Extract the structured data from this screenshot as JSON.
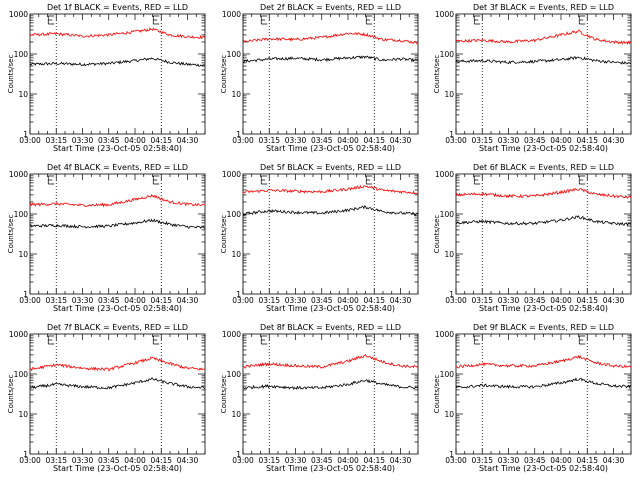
{
  "chart_data": [
    {
      "type": "line",
      "title": "Det 1f BLACK = Events, RED = LLD",
      "xlabel": "Start Time (23-Oct-05 02:58:40)",
      "ylabel": "Counts/sec",
      "yscale": "log",
      "ylim": [
        1,
        1000
      ],
      "xlim": [
        "03:00",
        "04:40"
      ],
      "x_tick_labels": [
        "03:00",
        "03:15",
        "03:30",
        "03:45",
        "04:00",
        "04:15",
        "04:30"
      ],
      "y_tick_labels": [
        "1",
        "10",
        "100",
        "1000"
      ],
      "dotted_vlines": [
        "03:15",
        "04:15"
      ],
      "grid": false,
      "legend": "none",
      "colors": {
        "events": "#000000",
        "lld": "#ff0000"
      },
      "series": [
        {
          "key": "events",
          "x": [
            "03:00",
            "03:15",
            "03:30",
            "03:45",
            "04:00",
            "04:10",
            "04:20",
            "04:30",
            "04:40"
          ],
          "values": [
            55,
            58,
            55,
            58,
            68,
            78,
            62,
            55,
            52
          ]
        },
        {
          "key": "lld",
          "x": [
            "03:00",
            "03:15",
            "03:30",
            "03:45",
            "04:00",
            "04:10",
            "04:20",
            "04:30",
            "04:40"
          ],
          "values": [
            300,
            320,
            280,
            300,
            360,
            420,
            300,
            270,
            260
          ]
        }
      ]
    },
    {
      "type": "line",
      "title": "Det 2f BLACK = Events, RED = LLD",
      "xlabel": "Start Time (23-Oct-05 02:58:40)",
      "ylabel": "Counts/sec",
      "yscale": "log",
      "ylim": [
        1,
        1000
      ],
      "xlim": [
        "03:00",
        "04:40"
      ],
      "x_tick_labels": [
        "03:00",
        "03:15",
        "03:30",
        "03:45",
        "04:00",
        "04:15",
        "04:30"
      ],
      "y_tick_labels": [
        "1",
        "10",
        "100",
        "1000"
      ],
      "dotted_vlines": [
        "03:15",
        "04:15"
      ],
      "grid": false,
      "legend": "none",
      "colors": {
        "events": "#000000",
        "lld": "#ff0000"
      },
      "series": [
        {
          "key": "events",
          "x": [
            "03:00",
            "03:15",
            "03:30",
            "03:45",
            "04:00",
            "04:10",
            "04:20",
            "04:30",
            "04:40"
          ],
          "values": [
            65,
            75,
            78,
            72,
            80,
            85,
            70,
            75,
            68
          ]
        },
        {
          "key": "lld",
          "x": [
            "03:00",
            "03:15",
            "03:30",
            "03:45",
            "04:00",
            "04:10",
            "04:20",
            "04:30",
            "04:40"
          ],
          "values": [
            200,
            240,
            230,
            260,
            330,
            310,
            230,
            220,
            190
          ]
        }
      ]
    },
    {
      "type": "line",
      "title": "Det 3f BLACK = Events, RED = LLD",
      "xlabel": "Start Time (23-Oct-05 02:58:40)",
      "ylabel": "Counts/sec",
      "yscale": "log",
      "ylim": [
        1,
        1000
      ],
      "xlim": [
        "03:00",
        "04:40"
      ],
      "x_tick_labels": [
        "03:00",
        "03:15",
        "03:30",
        "03:45",
        "04:00",
        "04:15",
        "04:30"
      ],
      "y_tick_labels": [
        "1",
        "10",
        "100",
        "1000"
      ],
      "dotted_vlines": [
        "03:15",
        "04:15"
      ],
      "grid": false,
      "legend": "none",
      "colors": {
        "events": "#000000",
        "lld": "#ff0000"
      },
      "series": [
        {
          "key": "events",
          "x": [
            "03:00",
            "03:15",
            "03:30",
            "03:45",
            "04:00",
            "04:10",
            "04:20",
            "04:30",
            "04:40"
          ],
          "values": [
            65,
            68,
            62,
            65,
            72,
            82,
            68,
            62,
            58
          ]
        },
        {
          "key": "lld",
          "x": [
            "03:00",
            "03:15",
            "03:30",
            "03:45",
            "04:00",
            "04:10",
            "04:20",
            "04:30",
            "04:40"
          ],
          "values": [
            210,
            220,
            200,
            220,
            300,
            370,
            230,
            200,
            190
          ]
        }
      ]
    },
    {
      "type": "line",
      "title": "Det 4f BLACK = Events, RED = LLD",
      "xlabel": "Start Time (23-Oct-05 02:58:40)",
      "ylabel": "Counts/sec",
      "yscale": "log",
      "ylim": [
        1,
        1000
      ],
      "xlim": [
        "03:00",
        "04:40"
      ],
      "x_tick_labels": [
        "03:00",
        "03:15",
        "03:30",
        "03:45",
        "04:00",
        "04:15",
        "04:30"
      ],
      "y_tick_labels": [
        "1",
        "10",
        "100",
        "1000"
      ],
      "dotted_vlines": [
        "03:15",
        "04:15"
      ],
      "grid": false,
      "legend": "none",
      "colors": {
        "events": "#000000",
        "lld": "#ff0000"
      },
      "series": [
        {
          "key": "events",
          "x": [
            "03:00",
            "03:15",
            "03:30",
            "03:45",
            "04:00",
            "04:10",
            "04:20",
            "04:30",
            "04:40"
          ],
          "values": [
            50,
            52,
            48,
            50,
            60,
            70,
            55,
            48,
            45
          ]
        },
        {
          "key": "lld",
          "x": [
            "03:00",
            "03:15",
            "03:30",
            "03:45",
            "04:00",
            "04:10",
            "04:20",
            "04:30",
            "04:40"
          ],
          "values": [
            170,
            180,
            165,
            170,
            230,
            290,
            200,
            175,
            165
          ]
        }
      ]
    },
    {
      "type": "line",
      "title": "Det 5f BLACK = Events, RED = LLD",
      "xlabel": "Start Time (23-Oct-05 02:58:40)",
      "ylabel": "Counts/sec",
      "yscale": "log",
      "ylim": [
        1,
        1000
      ],
      "xlim": [
        "03:00",
        "04:40"
      ],
      "x_tick_labels": [
        "03:00",
        "03:15",
        "03:30",
        "03:45",
        "04:00",
        "04:15",
        "04:30"
      ],
      "y_tick_labels": [
        "1",
        "10",
        "100",
        "1000"
      ],
      "dotted_vlines": [
        "03:15",
        "04:15"
      ],
      "grid": false,
      "legend": "none",
      "colors": {
        "events": "#000000",
        "lld": "#ff0000"
      },
      "series": [
        {
          "key": "events",
          "x": [
            "03:00",
            "03:15",
            "03:30",
            "03:45",
            "04:00",
            "04:10",
            "04:20",
            "04:30",
            "04:40"
          ],
          "values": [
            100,
            120,
            110,
            105,
            125,
            150,
            115,
            105,
            100
          ]
        },
        {
          "key": "lld",
          "x": [
            "03:00",
            "03:15",
            "03:30",
            "03:45",
            "04:00",
            "04:10",
            "04:20",
            "04:30",
            "04:40"
          ],
          "values": [
            350,
            390,
            370,
            360,
            420,
            500,
            390,
            360,
            340
          ]
        }
      ]
    },
    {
      "type": "line",
      "title": "Det 6f BLACK = Events, RED = LLD",
      "xlabel": "Start Time (23-Oct-05 02:58:40)",
      "ylabel": "Counts/sec",
      "yscale": "log",
      "ylim": [
        1,
        1000
      ],
      "xlim": [
        "03:00",
        "04:40"
      ],
      "x_tick_labels": [
        "03:00",
        "03:15",
        "03:30",
        "03:45",
        "04:00",
        "04:15",
        "04:30"
      ],
      "y_tick_labels": [
        "1",
        "10",
        "100",
        "1000"
      ],
      "dotted_vlines": [
        "03:15",
        "04:15"
      ],
      "grid": false,
      "legend": "none",
      "colors": {
        "events": "#000000",
        "lld": "#ff0000"
      },
      "series": [
        {
          "key": "events",
          "x": [
            "03:00",
            "03:15",
            "03:30",
            "03:45",
            "04:00",
            "04:10",
            "04:20",
            "04:30",
            "04:40"
          ],
          "values": [
            60,
            65,
            58,
            58,
            70,
            85,
            65,
            58,
            55
          ]
        },
        {
          "key": "lld",
          "x": [
            "03:00",
            "03:15",
            "03:30",
            "03:45",
            "04:00",
            "04:10",
            "04:20",
            "04:30",
            "04:40"
          ],
          "values": [
            300,
            320,
            280,
            280,
            350,
            420,
            310,
            280,
            260
          ]
        }
      ]
    },
    {
      "type": "line",
      "title": "Det 7f BLACK = Events, RED = LLD",
      "xlabel": "Start Time (23-Oct-05 02:58:40)",
      "ylabel": "Counts/sec",
      "yscale": "log",
      "ylim": [
        1,
        1000
      ],
      "xlim": [
        "03:00",
        "04:40"
      ],
      "x_tick_labels": [
        "03:00",
        "03:15",
        "03:30",
        "03:45",
        "04:00",
        "04:15",
        "04:30"
      ],
      "y_tick_labels": [
        "1",
        "10",
        "100",
        "1000"
      ],
      "dotted_vlines": [
        "03:15",
        "04:15"
      ],
      "grid": false,
      "legend": "none",
      "colors": {
        "events": "#000000",
        "lld": "#ff0000"
      },
      "series": [
        {
          "key": "events",
          "x": [
            "03:00",
            "03:15",
            "03:30",
            "03:45",
            "04:00",
            "04:10",
            "04:20",
            "04:30",
            "04:40"
          ],
          "values": [
            45,
            55,
            48,
            45,
            60,
            75,
            58,
            48,
            45
          ]
        },
        {
          "key": "lld",
          "x": [
            "03:00",
            "03:15",
            "03:30",
            "03:45",
            "04:00",
            "04:10",
            "04:20",
            "04:30",
            "04:40"
          ],
          "values": [
            130,
            170,
            140,
            130,
            190,
            250,
            180,
            140,
            130
          ]
        }
      ]
    },
    {
      "type": "line",
      "title": "Det 8f BLACK = Events, RED = LLD",
      "xlabel": "Start Time (23-Oct-05 02:58:40)",
      "ylabel": "Counts/sec",
      "yscale": "log",
      "ylim": [
        1,
        1000
      ],
      "xlim": [
        "03:00",
        "04:40"
      ],
      "x_tick_labels": [
        "03:00",
        "03:15",
        "03:30",
        "03:45",
        "04:00",
        "04:15",
        "04:30"
      ],
      "y_tick_labels": [
        "1",
        "10",
        "100",
        "1000"
      ],
      "dotted_vlines": [
        "03:15",
        "04:15"
      ],
      "grid": false,
      "legend": "none",
      "colors": {
        "events": "#000000",
        "lld": "#ff0000"
      },
      "series": [
        {
          "key": "events",
          "x": [
            "03:00",
            "03:15",
            "03:30",
            "03:45",
            "04:00",
            "04:10",
            "04:20",
            "04:30",
            "04:40"
          ],
          "values": [
            45,
            50,
            45,
            45,
            55,
            70,
            55,
            48,
            45
          ]
        },
        {
          "key": "lld",
          "x": [
            "03:00",
            "03:15",
            "03:30",
            "03:45",
            "04:00",
            "04:10",
            "04:20",
            "04:30",
            "04:40"
          ],
          "values": [
            150,
            180,
            160,
            150,
            210,
            290,
            200,
            160,
            150
          ]
        }
      ]
    },
    {
      "type": "line",
      "title": "Det 9f BLACK = Events, RED = LLD",
      "xlabel": "Start Time (23-Oct-05 02:58:40)",
      "ylabel": "Counts/sec",
      "yscale": "log",
      "ylim": [
        1,
        1000
      ],
      "xlim": [
        "03:00",
        "04:40"
      ],
      "x_tick_labels": [
        "03:00",
        "03:15",
        "03:30",
        "03:45",
        "04:00",
        "04:15",
        "04:30"
      ],
      "y_tick_labels": [
        "1",
        "10",
        "100",
        "1000"
      ],
      "dotted_vlines": [
        "03:15",
        "04:15"
      ],
      "grid": false,
      "legend": "none",
      "colors": {
        "events": "#000000",
        "lld": "#ff0000"
      },
      "series": [
        {
          "key": "events",
          "x": [
            "03:00",
            "03:15",
            "03:30",
            "03:45",
            "04:00",
            "04:10",
            "04:20",
            "04:30",
            "04:40"
          ],
          "values": [
            45,
            52,
            48,
            48,
            60,
            75,
            58,
            50,
            48
          ]
        },
        {
          "key": "lld",
          "x": [
            "03:00",
            "03:15",
            "03:30",
            "03:45",
            "04:00",
            "04:10",
            "04:20",
            "04:30",
            "04:40"
          ],
          "values": [
            150,
            175,
            160,
            160,
            210,
            270,
            190,
            160,
            150
          ]
        }
      ]
    }
  ]
}
